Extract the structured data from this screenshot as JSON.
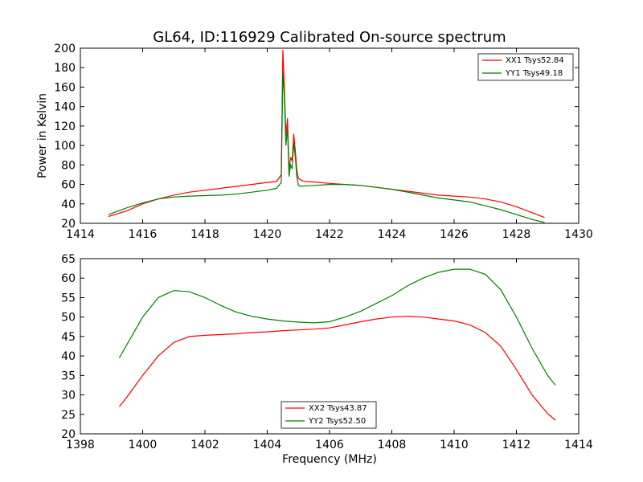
{
  "title": "GL64, ID:116929 Calibrated On-source spectrum",
  "chart_data": [
    {
      "type": "line",
      "title": "GL64, ID:116929 Calibrated On-source spectrum",
      "xlabel": "",
      "ylabel": "Power in Kelvin",
      "xlim": [
        1414,
        1430
      ],
      "ylim": [
        20,
        200
      ],
      "xticks": [
        1414,
        1416,
        1418,
        1420,
        1422,
        1424,
        1426,
        1428,
        1430
      ],
      "yticks": [
        20,
        40,
        60,
        80,
        100,
        120,
        140,
        160,
        180,
        200
      ],
      "legend_position": "top-right",
      "grid": false,
      "series": [
        {
          "name": "XX1 Tsys52.84",
          "color": "#ff0000",
          "x": [
            1414.9,
            1415.5,
            1416.0,
            1416.5,
            1417.0,
            1417.5,
            1418.0,
            1418.5,
            1419.0,
            1419.5,
            1420.0,
            1420.3,
            1420.45,
            1420.5,
            1420.55,
            1420.6,
            1420.65,
            1420.7,
            1420.75,
            1420.8,
            1420.85,
            1420.9,
            1420.95,
            1421.0,
            1421.1,
            1421.2,
            1421.5,
            1422.0,
            1422.5,
            1423.0,
            1423.5,
            1424.0,
            1424.5,
            1425.0,
            1425.5,
            1426.0,
            1426.5,
            1427.0,
            1427.5,
            1428.0,
            1428.5,
            1428.9
          ],
          "y": [
            27,
            33,
            40,
            45,
            49,
            52,
            54,
            56,
            58,
            60,
            62,
            63,
            70,
            198,
            160,
            110,
            128,
            75,
            88,
            84,
            112,
            95,
            75,
            66,
            64,
            63,
            62.5,
            61,
            60,
            59,
            57,
            55,
            53,
            51,
            49,
            48,
            47,
            45,
            42,
            37,
            31,
            26
          ]
        },
        {
          "name": "YY1 Tsys49.18",
          "color": "#008000",
          "x": [
            1414.9,
            1415.5,
            1416.0,
            1416.5,
            1417.0,
            1417.5,
            1418.0,
            1418.5,
            1419.0,
            1419.5,
            1420.0,
            1420.3,
            1420.45,
            1420.5,
            1420.55,
            1420.6,
            1420.65,
            1420.7,
            1420.75,
            1420.8,
            1420.85,
            1420.9,
            1420.95,
            1421.0,
            1421.1,
            1421.2,
            1421.5,
            1422.0,
            1422.5,
            1423.0,
            1423.5,
            1424.0,
            1424.5,
            1425.0,
            1425.5,
            1426.0,
            1426.5,
            1427.0,
            1427.5,
            1428.0,
            1428.5,
            1428.9
          ],
          "y": [
            29,
            36,
            41,
            45,
            47,
            48,
            48.5,
            49,
            50,
            52,
            54,
            56,
            62,
            175,
            150,
            100,
            118,
            68,
            80,
            76,
            103,
            88,
            68,
            59,
            58,
            58.5,
            59,
            60,
            60,
            59,
            57,
            55,
            52,
            49,
            46,
            44,
            42,
            38,
            34,
            29,
            24,
            21
          ]
        }
      ]
    },
    {
      "type": "line",
      "title": "",
      "xlabel": "Frequency (MHz)",
      "ylabel": "",
      "xlim": [
        1398,
        1414
      ],
      "ylim": [
        20,
        65
      ],
      "xticks": [
        1398,
        1400,
        1402,
        1404,
        1406,
        1408,
        1410,
        1412,
        1414
      ],
      "yticks": [
        20,
        25,
        30,
        35,
        40,
        45,
        50,
        55,
        60,
        65
      ],
      "legend_position": "lower-center",
      "grid": false,
      "series": [
        {
          "name": "XX2 Tsys43.87",
          "color": "#ff0000",
          "x": [
            1399.25,
            1399.5,
            1400.0,
            1400.5,
            1401.0,
            1401.5,
            1402.0,
            1402.5,
            1403.0,
            1403.5,
            1404.0,
            1404.5,
            1405.0,
            1405.5,
            1406.0,
            1406.5,
            1407.0,
            1407.5,
            1408.0,
            1408.5,
            1409.0,
            1409.5,
            1410.0,
            1410.5,
            1411.0,
            1411.5,
            1412.0,
            1412.5,
            1413.0,
            1413.25
          ],
          "y": [
            27,
            29.5,
            35,
            40,
            43.5,
            45,
            45.3,
            45.5,
            45.7,
            46,
            46.2,
            46.5,
            46.7,
            46.9,
            47.2,
            48,
            48.8,
            49.5,
            50,
            50.2,
            50,
            49.5,
            49,
            48,
            46,
            42.5,
            36.5,
            30,
            25.2,
            23.5
          ]
        },
        {
          "name": "YY2 Tsys52.50",
          "color": "#008000",
          "x": [
            1399.25,
            1399.5,
            1400.0,
            1400.5,
            1401.0,
            1401.5,
            1402.0,
            1402.5,
            1403.0,
            1403.5,
            1404.0,
            1404.5,
            1405.0,
            1405.5,
            1406.0,
            1406.5,
            1407.0,
            1407.5,
            1408.0,
            1408.5,
            1409.0,
            1409.5,
            1410.0,
            1410.5,
            1411.0,
            1411.5,
            1412.0,
            1412.5,
            1413.0,
            1413.25
          ],
          "y": [
            39.5,
            43,
            50,
            55,
            56.8,
            56.5,
            55,
            53,
            51.3,
            50.2,
            49.5,
            49,
            48.7,
            48.5,
            48.8,
            50,
            51.5,
            53.5,
            55.5,
            58,
            60,
            61.5,
            62.3,
            62.3,
            61,
            57,
            50,
            42,
            35,
            32.5
          ]
        }
      ]
    }
  ]
}
